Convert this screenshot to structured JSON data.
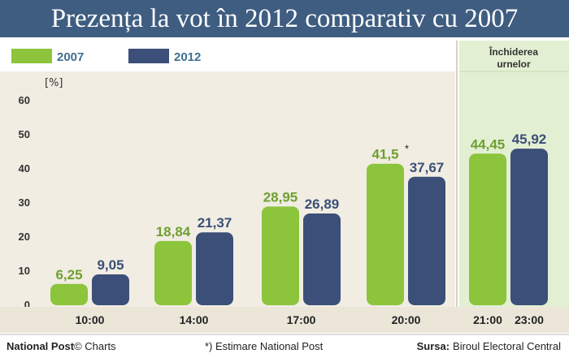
{
  "colors": {
    "series_2007": "#8cc43c",
    "series_2012": "#3b4f78",
    "title_bg": "#3f5d80",
    "plot_bg": "#f1ede2",
    "closing_bg": "#e3efd3",
    "label_2007": "#6ea030",
    "label_2012": "#3b4f78"
  },
  "closing_label": [
    "Închiderea",
    "urnelor"
  ],
  "footer": {
    "brand": "National Post",
    "brand_suffix": "© Charts",
    "note": "*) Estimare National Post",
    "source_label": "Sursa:",
    "source_value": "Biroul Electoral Central"
  },
  "chart_data": {
    "type": "bar",
    "title": "Prezența la vot în 2012 comparativ cu 2007",
    "ylabel": "[%]",
    "ylim": [
      0,
      60
    ],
    "yticks": [
      0,
      10,
      20,
      30,
      40,
      50,
      60
    ],
    "grid": false,
    "legend_position": "top-left",
    "groups": [
      {
        "label": "10:00",
        "bars": [
          {
            "series": "2007",
            "value": 6.25,
            "label": "6,25"
          },
          {
            "series": "2012",
            "value": 9.05,
            "label": "9,05"
          }
        ]
      },
      {
        "label": "14:00",
        "bars": [
          {
            "series": "2007",
            "value": 18.84,
            "label": "18,84"
          },
          {
            "series": "2012",
            "value": 21.37,
            "label": "21,37"
          }
        ]
      },
      {
        "label": "17:00",
        "bars": [
          {
            "series": "2007",
            "value": 28.95,
            "label": "28,95"
          },
          {
            "series": "2012",
            "value": 26.89,
            "label": "26,89"
          }
        ]
      },
      {
        "label": "20:00",
        "bars": [
          {
            "series": "2007",
            "value": 41.5,
            "label": "41,5",
            "note": "*"
          },
          {
            "series": "2012",
            "value": 37.67,
            "label": "37,67"
          }
        ]
      },
      {
        "label": "",
        "bars": [
          {
            "series": "2007",
            "value": 44.45,
            "label": "44,45",
            "category": "21:00"
          },
          {
            "series": "2012",
            "value": 45.92,
            "label": "45,92",
            "category": "23:00"
          }
        ]
      }
    ],
    "series": [
      {
        "name": "2007"
      },
      {
        "name": "2012"
      }
    ]
  }
}
